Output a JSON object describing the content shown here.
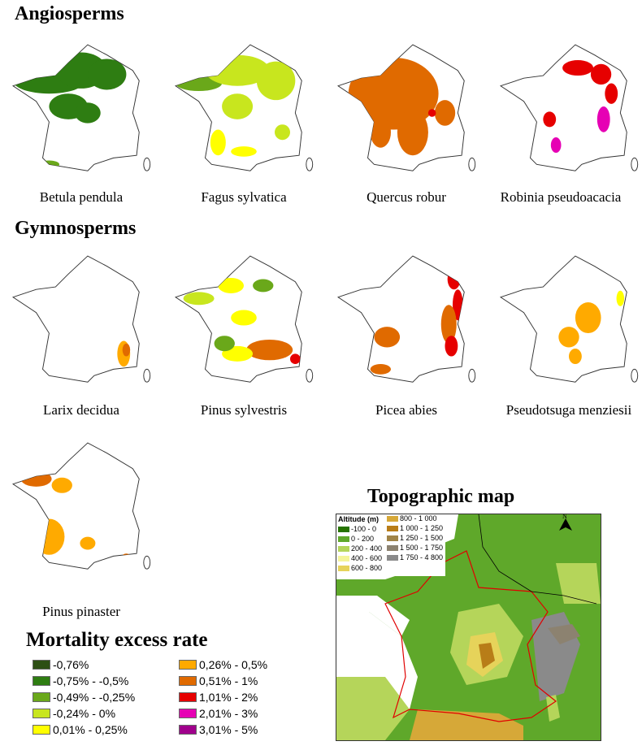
{
  "sections": {
    "angiosperms": "Angiosperms",
    "gymnosperms": "Gymnosperms",
    "topographic": "Topographic map"
  },
  "species": [
    {
      "name": "Betula pendula"
    },
    {
      "name": "Fagus sylvatica"
    },
    {
      "name": "Quercus robur"
    },
    {
      "name": "Robinia pseudoacacia"
    },
    {
      "name": "Larix decidua"
    },
    {
      "name": "Pinus sylvestris"
    },
    {
      "name": "Picea abies"
    },
    {
      "name": "Pseudotsuga menziesii"
    },
    {
      "name": "Pinus pinaster"
    }
  ],
  "legend": {
    "title": "Mortality excess rate",
    "classes": [
      {
        "label": "-0,76%",
        "color": "#2d4f14"
      },
      {
        "label": "-0,75% - -0,5%",
        "color": "#2e7d12"
      },
      {
        "label": "-0,49% - -0,25%",
        "color": "#6aa81a"
      },
      {
        "label": "-0,24% - 0%",
        "color": "#c8e61e"
      },
      {
        "label": "0,01% - 0,25%",
        "color": "#ffff00"
      },
      {
        "label": "0,26% - 0,5%",
        "color": "#ffaa00"
      },
      {
        "label": "0,51% - 1%",
        "color": "#e06a00"
      },
      {
        "label": "1,01% - 2%",
        "color": "#e60000"
      },
      {
        "label": "2,01% - 3%",
        "color": "#e600b4"
      },
      {
        "label": "3,01% - 5%",
        "color": "#a0008c"
      }
    ]
  },
  "topo_legend": {
    "title": "Altitude (m)",
    "north": "N",
    "classes": [
      {
        "label": "-100 - 0",
        "color": "#267300"
      },
      {
        "label": "0 - 200",
        "color": "#5fa82a"
      },
      {
        "label": "200 - 400",
        "color": "#b5d55a"
      },
      {
        "label": "400 - 600",
        "color": "#f5f59a"
      },
      {
        "label": "600 - 800",
        "color": "#e6d35a"
      },
      {
        "label": "800 - 1 000",
        "color": "#d6a838"
      },
      {
        "label": "1 000 - 1 250",
        "color": "#b87d18"
      },
      {
        "label": "1 250 - 1 500",
        "color": "#a08448"
      },
      {
        "label": "1 500 - 1 750",
        "color": "#8c8270"
      },
      {
        "label": "1 750 - 4 800",
        "color": "#8a8a8a"
      }
    ]
  }
}
